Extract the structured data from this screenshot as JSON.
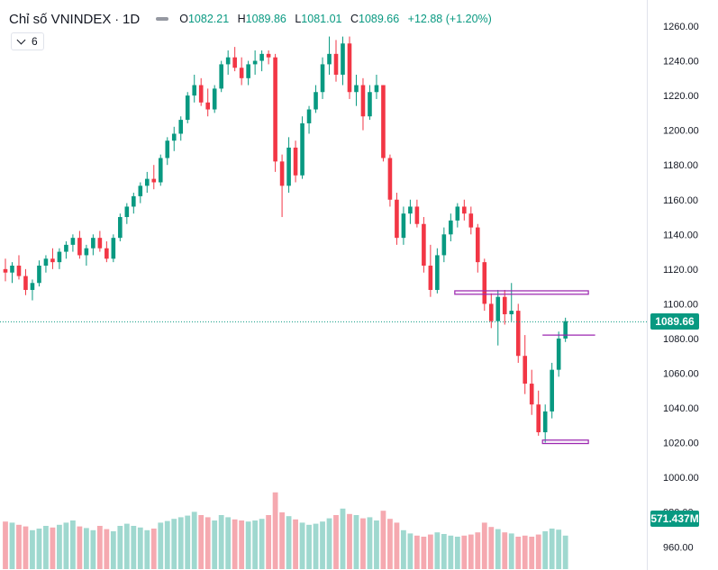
{
  "header": {
    "title": "Chỉ số VNINDEX",
    "separator": "·",
    "interval": "1D",
    "open_label": "O",
    "open": "1082.21",
    "high_label": "H",
    "high": "1089.86",
    "low_label": "L",
    "low": "1081.01",
    "close_label": "C",
    "close": "1089.66",
    "change": "+12.88 (+1.20%)"
  },
  "indicator_toggle": {
    "label": "6"
  },
  "badges": {
    "price": "1089.66",
    "volume": "571.437M"
  },
  "colors": {
    "up": "#089981",
    "down": "#f23645",
    "volume_up": "#9fd8cf",
    "volume_down": "#f5a9b0",
    "trendline": "#9c27b0",
    "price_line": "#089981"
  },
  "chart_data": {
    "type": "candlestick",
    "y_axis": {
      "range": [
        955,
        1265
      ],
      "ticks": [
        "1260.00",
        "1240.00",
        "1220.00",
        "1200.00",
        "1180.00",
        "1160.00",
        "1140.00",
        "1120.00",
        "1100.00",
        "1080.00",
        "1060.00",
        "1040.00",
        "1020.00",
        "1000.00",
        "980.00",
        "960.00"
      ],
      "tick_values": [
        1260,
        1240,
        1220,
        1200,
        1180,
        1160,
        1140,
        1120,
        1100,
        1080,
        1060,
        1040,
        1020,
        1000,
        980,
        960
      ]
    },
    "last_close": 1089.66,
    "candles": [
      [
        1120,
        1126,
        1113,
        1118
      ],
      [
        1118,
        1124,
        1112,
        1122
      ],
      [
        1122,
        1128,
        1114,
        1116
      ],
      [
        1116,
        1120,
        1105,
        1108
      ],
      [
        1108,
        1114,
        1102,
        1112
      ],
      [
        1112,
        1125,
        1110,
        1122
      ],
      [
        1122,
        1128,
        1118,
        1126
      ],
      [
        1126,
        1132,
        1120,
        1124
      ],
      [
        1124,
        1132,
        1120,
        1130
      ],
      [
        1130,
        1136,
        1126,
        1134
      ],
      [
        1134,
        1140,
        1130,
        1138
      ],
      [
        1138,
        1142,
        1126,
        1128
      ],
      [
        1128,
        1134,
        1122,
        1132
      ],
      [
        1132,
        1140,
        1128,
        1138
      ],
      [
        1138,
        1142,
        1130,
        1132
      ],
      [
        1132,
        1136,
        1124,
        1126
      ],
      [
        1126,
        1140,
        1124,
        1138
      ],
      [
        1138,
        1152,
        1136,
        1150
      ],
      [
        1150,
        1158,
        1146,
        1156
      ],
      [
        1156,
        1164,
        1152,
        1162
      ],
      [
        1162,
        1170,
        1158,
        1168
      ],
      [
        1168,
        1176,
        1164,
        1172
      ],
      [
        1172,
        1180,
        1166,
        1170
      ],
      [
        1170,
        1186,
        1168,
        1184
      ],
      [
        1184,
        1196,
        1180,
        1194
      ],
      [
        1194,
        1202,
        1188,
        1198
      ],
      [
        1198,
        1208,
        1194,
        1206
      ],
      [
        1206,
        1222,
        1204,
        1220
      ],
      [
        1220,
        1232,
        1216,
        1226
      ],
      [
        1226,
        1230,
        1214,
        1216
      ],
      [
        1216,
        1224,
        1208,
        1212
      ],
      [
        1212,
        1226,
        1210,
        1224
      ],
      [
        1224,
        1240,
        1222,
        1238
      ],
      [
        1238,
        1246,
        1232,
        1242
      ],
      [
        1242,
        1248,
        1234,
        1236
      ],
      [
        1236,
        1242,
        1226,
        1230
      ],
      [
        1230,
        1240,
        1226,
        1238
      ],
      [
        1238,
        1246,
        1232,
        1240
      ],
      [
        1240,
        1246,
        1234,
        1244
      ],
      [
        1244,
        1246,
        1238,
        1242
      ],
      [
        1242,
        1244,
        1176,
        1182
      ],
      [
        1182,
        1186,
        1150,
        1168
      ],
      [
        1168,
        1196,
        1164,
        1190
      ],
      [
        1190,
        1194,
        1170,
        1174
      ],
      [
        1174,
        1208,
        1172,
        1204
      ],
      [
        1204,
        1214,
        1198,
        1212
      ],
      [
        1212,
        1226,
        1210,
        1222
      ],
      [
        1222,
        1242,
        1218,
        1238
      ],
      [
        1238,
        1254,
        1232,
        1244
      ],
      [
        1244,
        1252,
        1228,
        1232
      ],
      [
        1232,
        1254,
        1226,
        1250
      ],
      [
        1250,
        1254,
        1218,
        1222
      ],
      [
        1222,
        1232,
        1214,
        1226
      ],
      [
        1226,
        1230,
        1200,
        1208
      ],
      [
        1208,
        1226,
        1206,
        1222
      ],
      [
        1222,
        1232,
        1218,
        1226
      ],
      [
        1226,
        1226,
        1182,
        1184
      ],
      [
        1184,
        1186,
        1156,
        1160
      ],
      [
        1160,
        1164,
        1134,
        1138
      ],
      [
        1138,
        1156,
        1134,
        1152
      ],
      [
        1152,
        1160,
        1146,
        1156
      ],
      [
        1156,
        1160,
        1144,
        1146
      ],
      [
        1146,
        1150,
        1118,
        1122
      ],
      [
        1122,
        1134,
        1104,
        1108
      ],
      [
        1108,
        1132,
        1106,
        1128
      ],
      [
        1128,
        1144,
        1124,
        1140
      ],
      [
        1140,
        1152,
        1136,
        1148
      ],
      [
        1148,
        1158,
        1144,
        1156
      ],
      [
        1156,
        1160,
        1148,
        1152
      ],
      [
        1152,
        1156,
        1140,
        1144
      ],
      [
        1144,
        1146,
        1118,
        1124
      ],
      [
        1124,
        1126,
        1096,
        1100
      ],
      [
        1100,
        1106,
        1086,
        1090
      ],
      [
        1090,
        1108,
        1076,
        1104
      ],
      [
        1104,
        1108,
        1088,
        1094
      ],
      [
        1094,
        1112,
        1090,
        1096
      ],
      [
        1096,
        1100,
        1066,
        1070
      ],
      [
        1070,
        1082,
        1048,
        1054
      ],
      [
        1054,
        1062,
        1036,
        1042
      ],
      [
        1042,
        1050,
        1024,
        1026
      ],
      [
        1026,
        1042,
        1020,
        1038
      ],
      [
        1038,
        1066,
        1034,
        1062
      ],
      [
        1062,
        1084,
        1058,
        1080
      ],
      [
        1080,
        1092,
        1078,
        1090
      ]
    ],
    "volumes": [
      0.88,
      0.86,
      0.82,
      0.79,
      0.72,
      0.75,
      0.8,
      0.77,
      0.82,
      0.86,
      0.9,
      0.79,
      0.76,
      0.72,
      0.8,
      0.74,
      0.7,
      0.8,
      0.84,
      0.8,
      0.77,
      0.72,
      0.75,
      0.86,
      0.89,
      0.93,
      0.96,
      0.99,
      1.06,
      1.0,
      0.96,
      0.9,
      1.0,
      0.96,
      0.92,
      0.9,
      0.88,
      0.9,
      0.93,
      1.0,
      1.42,
      1.05,
      0.98,
      0.92,
      0.86,
      0.82,
      0.84,
      0.88,
      0.94,
      1.0,
      1.12,
      1.02,
      1.0,
      0.94,
      0.96,
      0.9,
      1.08,
      0.93,
      0.86,
      0.72,
      0.66,
      0.62,
      0.6,
      0.64,
      0.68,
      0.65,
      0.62,
      0.6,
      0.62,
      0.64,
      0.68,
      0.86,
      0.78,
      0.74,
      0.68,
      0.66,
      0.6,
      0.62,
      0.6,
      0.64,
      0.7,
      0.75,
      0.73,
      0.62
    ],
    "volume_scale_max": 1.5,
    "overlays": [
      {
        "kind": "rectangle",
        "from": 67,
        "to": 86,
        "low": 1105.5,
        "high": 1107.5
      },
      {
        "kind": "rectangle",
        "from": 80,
        "to": 86,
        "low": 1019.5,
        "high": 1021.5
      },
      {
        "kind": "hline",
        "from": 80,
        "to": 87,
        "value": 1082
      }
    ]
  }
}
